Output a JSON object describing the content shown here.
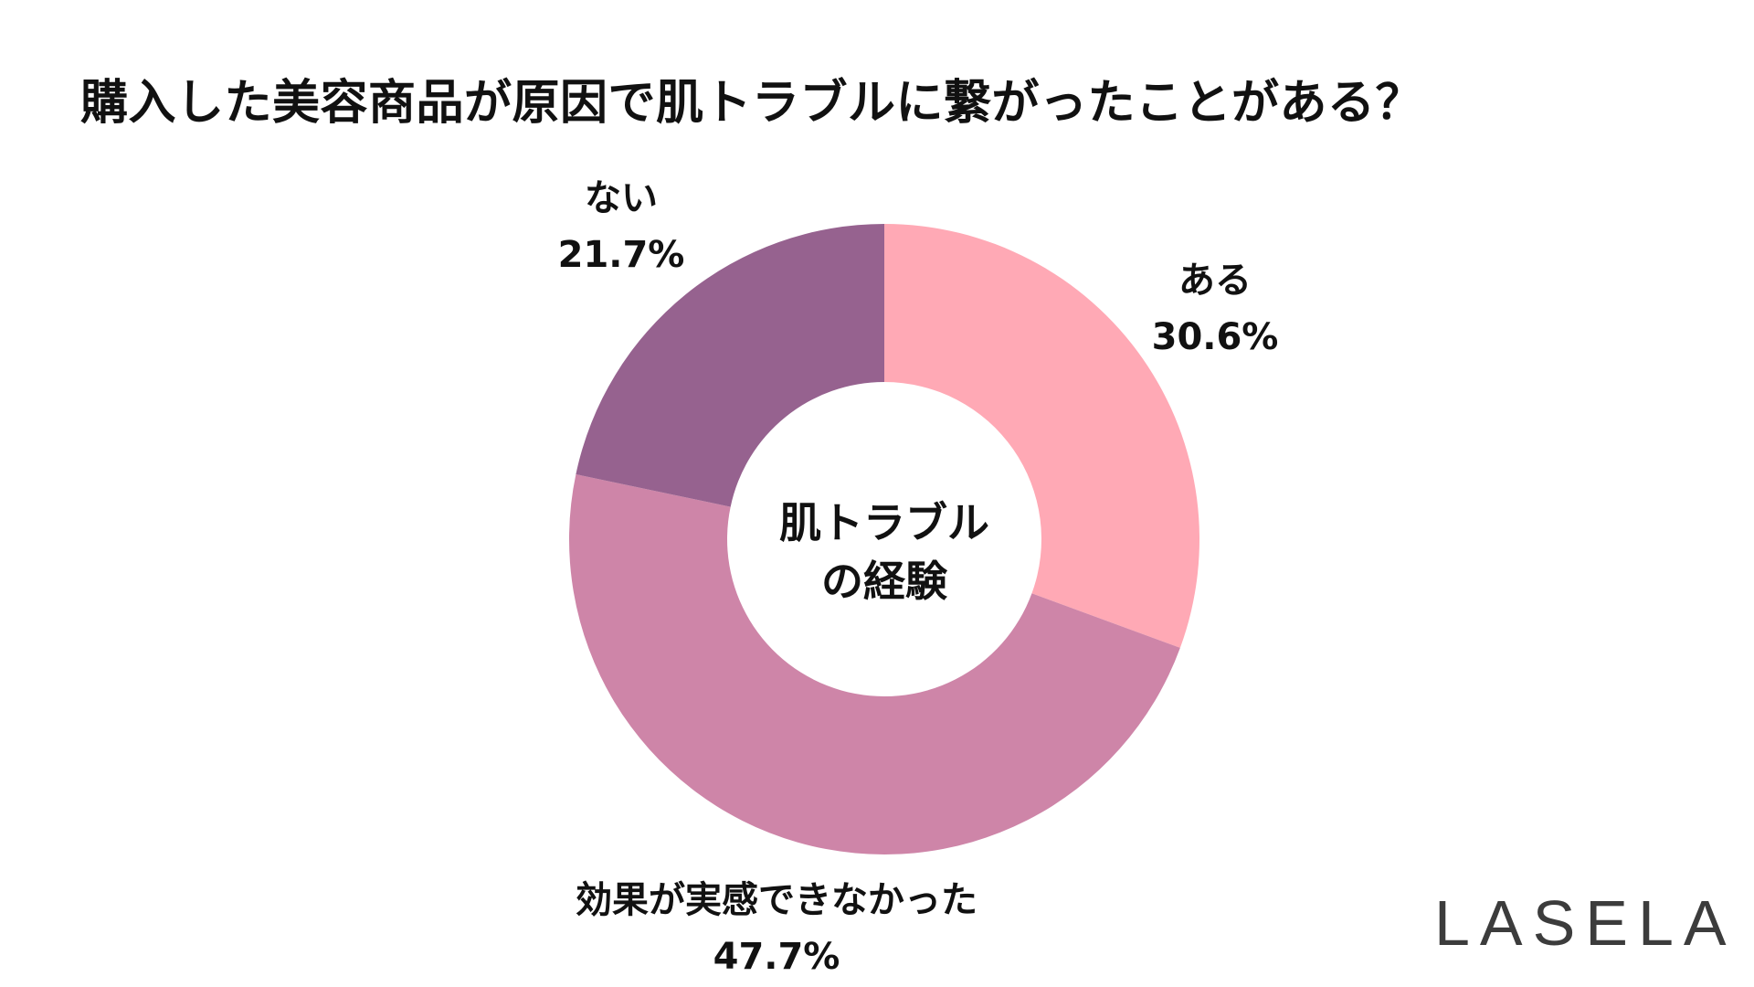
{
  "title": "購入した美容商品が原因で肌トラブルに繋がったことがある？",
  "center_label": [
    "肌トラブル",
    "の経験"
  ],
  "brand": "LASELA",
  "chart_data": {
    "type": "pie",
    "donut": true,
    "start": "12 o'clock, clockwise",
    "slices": [
      {
        "label": "ある",
        "value": 30.6,
        "display": "30.6%",
        "color": "#FFA9B5"
      },
      {
        "label": "効果が実感できなかった",
        "value": 47.7,
        "display": "47.7%",
        "color": "#CE85A8"
      },
      {
        "label": "ない",
        "value": 21.7,
        "display": "21.7%",
        "color": "#96628F"
      }
    ]
  }
}
